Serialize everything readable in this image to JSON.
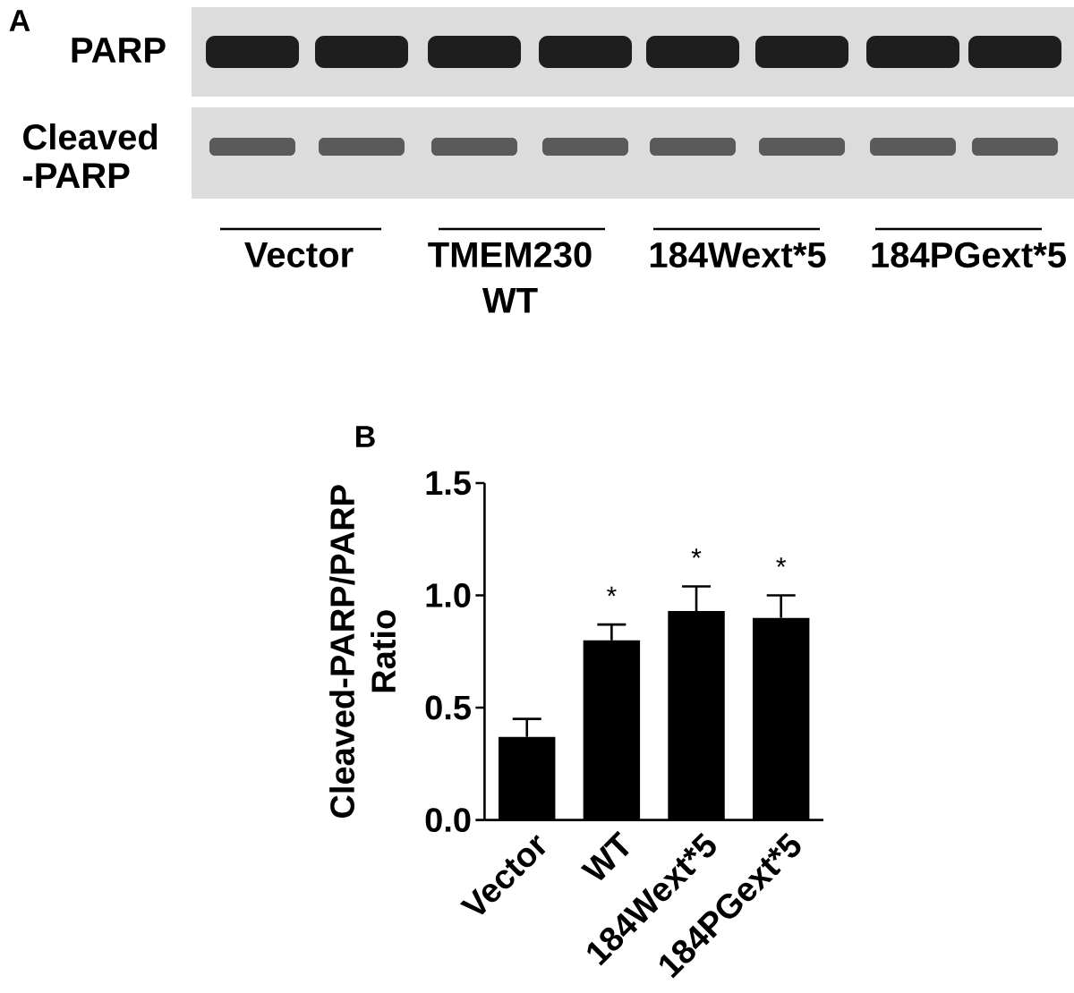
{
  "chart_data": {
    "type": "bar",
    "ylabel": "Cleaved-PARP/PARP Ratio",
    "categories": [
      "Vector",
      "WT",
      "184Wext*5",
      "184PGext*5"
    ],
    "values": [
      0.37,
      0.8,
      0.93,
      0.9
    ],
    "errors": [
      [
        0.37,
        0.45
      ],
      [
        0.8,
        0.87
      ],
      [
        0.93,
        1.04
      ],
      [
        0.9,
        1.0
      ]
    ],
    "color": "#000000",
    "ylim": [
      0,
      1.5
    ],
    "yticks": [
      {
        "value": 0,
        "label": "0.0"
      },
      0.5,
      {
        "value": 1,
        "label": "1.0"
      },
      1.5
    ],
    "annotations": [
      "A",
      "PARP",
      "Cleaved -PARP",
      "Vector",
      "TMEM230 WT",
      "184Wext*5",
      "184PGext*5",
      "B",
      "*",
      "*",
      "*"
    ]
  }
}
